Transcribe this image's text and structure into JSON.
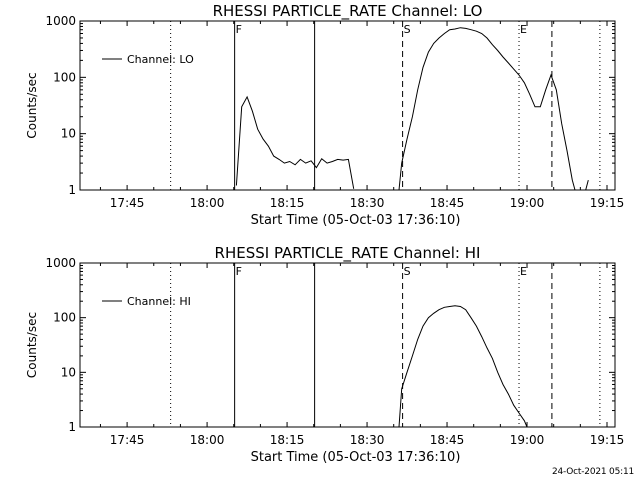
{
  "footer": {
    "timestamp": "24-Oct-2021 05:11"
  },
  "chart_data": [
    {
      "type": "line",
      "title": "RHESSI PARTICLE_RATE Channel: LO",
      "xlabel": "Start Time (05-Oct-03 17:36:10)",
      "ylabel": "Counts/sec",
      "yscale": "log",
      "xlim": [
        "17:36:10",
        "19:16:30"
      ],
      "ylim": [
        1,
        1000
      ],
      "x_ticks": [
        "17:45",
        "18:00",
        "18:15",
        "18:30",
        "18:45",
        "19:00",
        "19:15"
      ],
      "y_ticks": [
        "1",
        "10",
        "100",
        "1000"
      ],
      "legend": {
        "position": "top-left",
        "entries": [
          "Channel: LO"
        ]
      },
      "markers": [
        {
          "time": "17:36:10",
          "style": "dotted",
          "label": ""
        },
        {
          "time": "17:53:10",
          "style": "dotted",
          "label": ""
        },
        {
          "time": "18:05:10",
          "style": "solid",
          "label": "F"
        },
        {
          "time": "18:20:10",
          "style": "solid",
          "label": ""
        },
        {
          "time": "18:36:40",
          "style": "dashed",
          "label": "S"
        },
        {
          "time": "18:58:30",
          "style": "dotted",
          "label": "E"
        },
        {
          "time": "19:04:40",
          "style": "dashed",
          "label": ""
        },
        {
          "time": "19:13:40",
          "style": "dotted",
          "label": ""
        }
      ],
      "series": [
        {
          "name": "Channel: LO",
          "x": [
            "18:05:30",
            "18:06:30",
            "18:07:30",
            "18:08:30",
            "18:09:30",
            "18:10:30",
            "18:11:30",
            "18:12:30",
            "18:13:30",
            "18:14:30",
            "18:15:30",
            "18:16:30",
            "18:17:30",
            "18:18:30",
            "18:19:30",
            "18:20:30",
            "18:21:30",
            "18:22:30",
            "18:23:30",
            "18:24:30",
            "18:25:30",
            "18:26:30",
            "18:27:30",
            null,
            "18:36:00",
            "18:36:30",
            "18:37:30",
            "18:38:30",
            "18:39:30",
            "18:40:30",
            "18:41:30",
            "18:42:30",
            "18:43:30",
            "18:44:30",
            "18:45:30",
            "18:46:30",
            "18:47:30",
            "18:48:30",
            "18:49:30",
            "18:50:30",
            "18:51:30",
            "18:52:30",
            "18:53:30",
            "18:54:30",
            "18:55:30",
            "18:56:30",
            "18:57:30",
            "18:58:30",
            "18:59:30",
            "19:00:30",
            "19:01:30",
            "19:02:30",
            "19:03:30",
            "19:04:30",
            "19:05:30",
            "19:06:30",
            "19:07:30",
            "19:08:30",
            "19:09:00",
            null,
            "19:11:00",
            "19:11:30"
          ],
          "y": [
            1.2,
            30,
            45,
            25,
            12,
            8,
            6,
            4,
            3.5,
            3,
            3.2,
            2.8,
            3.5,
            3,
            3.3,
            2.5,
            3.6,
            3,
            3.2,
            3.5,
            3.4,
            3.5,
            1.05,
            null,
            1.0,
            3,
            8,
            20,
            60,
            150,
            280,
            400,
            500,
            600,
            700,
            720,
            760,
            740,
            700,
            660,
            600,
            500,
            380,
            300,
            230,
            180,
            140,
            110,
            80,
            50,
            30,
            30,
            60,
            110,
            60,
            15,
            5,
            1.5,
            1.0,
            null,
            1.0,
            1.5
          ]
        }
      ]
    },
    {
      "type": "line",
      "title": "RHESSI PARTICLE_RATE Channel: HI",
      "xlabel": "Start Time (05-Oct-03 17:36:10)",
      "ylabel": "Counts/sec",
      "yscale": "log",
      "xlim": [
        "17:36:10",
        "19:16:30"
      ],
      "ylim": [
        1,
        1000
      ],
      "x_ticks": [
        "17:45",
        "18:00",
        "18:15",
        "18:30",
        "18:45",
        "19:00",
        "19:15"
      ],
      "y_ticks": [
        "1",
        "10",
        "100",
        "1000"
      ],
      "legend": {
        "position": "top-left",
        "entries": [
          "Channel: HI"
        ]
      },
      "markers": [
        {
          "time": "17:36:10",
          "style": "dotted",
          "label": ""
        },
        {
          "time": "17:53:10",
          "style": "dotted",
          "label": ""
        },
        {
          "time": "18:05:10",
          "style": "solid",
          "label": "F"
        },
        {
          "time": "18:20:10",
          "style": "solid",
          "label": ""
        },
        {
          "time": "18:36:40",
          "style": "dashed",
          "label": "S"
        },
        {
          "time": "18:58:30",
          "style": "dotted",
          "label": "E"
        },
        {
          "time": "19:04:40",
          "style": "dashed",
          "label": ""
        },
        {
          "time": "19:13:40",
          "style": "dotted",
          "label": ""
        }
      ],
      "series": [
        {
          "name": "Channel: HI",
          "x": [
            "18:36:00",
            "18:36:30",
            "18:37:30",
            "18:38:30",
            "18:39:30",
            "18:40:30",
            "18:41:30",
            "18:42:30",
            "18:43:30",
            "18:44:30",
            "18:45:30",
            "18:46:30",
            "18:47:30",
            "18:48:30",
            "18:49:30",
            "18:50:30",
            "18:51:30",
            "18:52:30",
            "18:53:30",
            "18:54:30",
            "18:55:30",
            "18:56:30",
            "18:57:30",
            "18:58:30",
            "18:59:30",
            "19:00:00"
          ],
          "y": [
            1.0,
            5,
            10,
            20,
            40,
            70,
            100,
            120,
            140,
            155,
            160,
            165,
            160,
            140,
            100,
            70,
            45,
            28,
            18,
            10,
            6,
            4,
            2.5,
            1.8,
            1.3,
            1.0
          ]
        }
      ]
    }
  ]
}
